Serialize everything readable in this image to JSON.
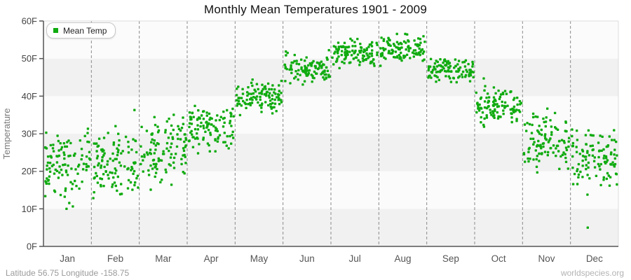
{
  "page": {
    "title": "Monthly Mean Temperatures 1901 - 2009"
  },
  "legend": {
    "label": "Mean Temp",
    "position": "top-left"
  },
  "axes": {
    "y_title": "Temperature",
    "y_tick_labels": [
      "0F",
      "10F",
      "20F",
      "30F",
      "40F",
      "50F",
      "60F"
    ],
    "x_labels": [
      "Jan",
      "Feb",
      "Mar",
      "Apr",
      "May",
      "Jun",
      "Jul",
      "Aug",
      "Sep",
      "Oct",
      "Nov",
      "Dec"
    ]
  },
  "footer": {
    "left": "Latitude 56.75 Longitude -158.75",
    "right": "worldspecies.org"
  },
  "colors": {
    "marker": "#10ab10",
    "band_gray": "#f1f1f1",
    "band_light": "#fbfbfb",
    "gridline": "#8a8a8a",
    "axis": "#555555",
    "plot_border": "#dddddd",
    "tick_text": "#444444",
    "month_text": "#555555"
  },
  "chart_data": {
    "type": "scatter",
    "title": "Monthly Mean Temperatures 1901 - 2009",
    "ylabel": "Temperature",
    "ylim": [
      0,
      60
    ],
    "y_tick_step": 10,
    "categories": [
      "Jan",
      "Feb",
      "Mar",
      "Apr",
      "May",
      "Jun",
      "Jul",
      "Aug",
      "Sep",
      "Oct",
      "Nov",
      "Dec"
    ],
    "years_range": "1901 - 2009",
    "points_per_month": 109,
    "legend_position": "top-left",
    "background_bands": "alternating 10F horizontal stripes (0-10, 20-30, 40-50 shaded)",
    "gridlines": "dashed vertical lines at month boundaries",
    "series": [
      {
        "name": "Mean Temp",
        "color": "#10ab10",
        "unit": "F",
        "monthly_distributions": [
          {
            "month": "Jan",
            "mean": 21.5,
            "sd": 4.6,
            "min": 9.0,
            "max": 34.5
          },
          {
            "month": "Feb",
            "mean": 22.0,
            "sd": 4.4,
            "min": 9.0,
            "max": 33.0
          },
          {
            "month": "Mar",
            "mean": 26.0,
            "sd": 4.2,
            "min": 10.0,
            "max": 36.0
          },
          {
            "month": "Apr",
            "mean": 31.0,
            "sd": 2.9,
            "min": 22.5,
            "max": 38.0
          },
          {
            "month": "May",
            "mean": 39.8,
            "sd": 2.2,
            "min": 34.0,
            "max": 46.0
          },
          {
            "month": "Jun",
            "mean": 47.5,
            "sd": 2.0,
            "min": 42.5,
            "max": 53.0
          },
          {
            "month": "Jul",
            "mean": 51.6,
            "sd": 1.8,
            "min": 47.0,
            "max": 56.0
          },
          {
            "month": "Aug",
            "mean": 52.3,
            "sd": 1.8,
            "min": 47.5,
            "max": 57.0
          },
          {
            "month": "Sep",
            "mean": 47.0,
            "sd": 1.6,
            "min": 43.0,
            "max": 50.5
          },
          {
            "month": "Oct",
            "mean": 37.3,
            "sd": 2.4,
            "min": 31.5,
            "max": 43.5
          },
          {
            "month": "Nov",
            "mean": 28.6,
            "sd": 3.6,
            "min": 16.5,
            "max": 37.0
          },
          {
            "month": "Dec",
            "mean": 23.8,
            "sd": 3.9,
            "min": 12.0,
            "max": 32.0
          }
        ],
        "outliers": [
          {
            "month": "Feb",
            "value": 36.3,
            "x_fraction": 0.9
          },
          {
            "month": "Oct",
            "value": 44.7,
            "x_fraction": 0.19
          },
          {
            "month": "Dec",
            "value": 5.0,
            "x_fraction": 0.36
          }
        ]
      }
    ]
  }
}
